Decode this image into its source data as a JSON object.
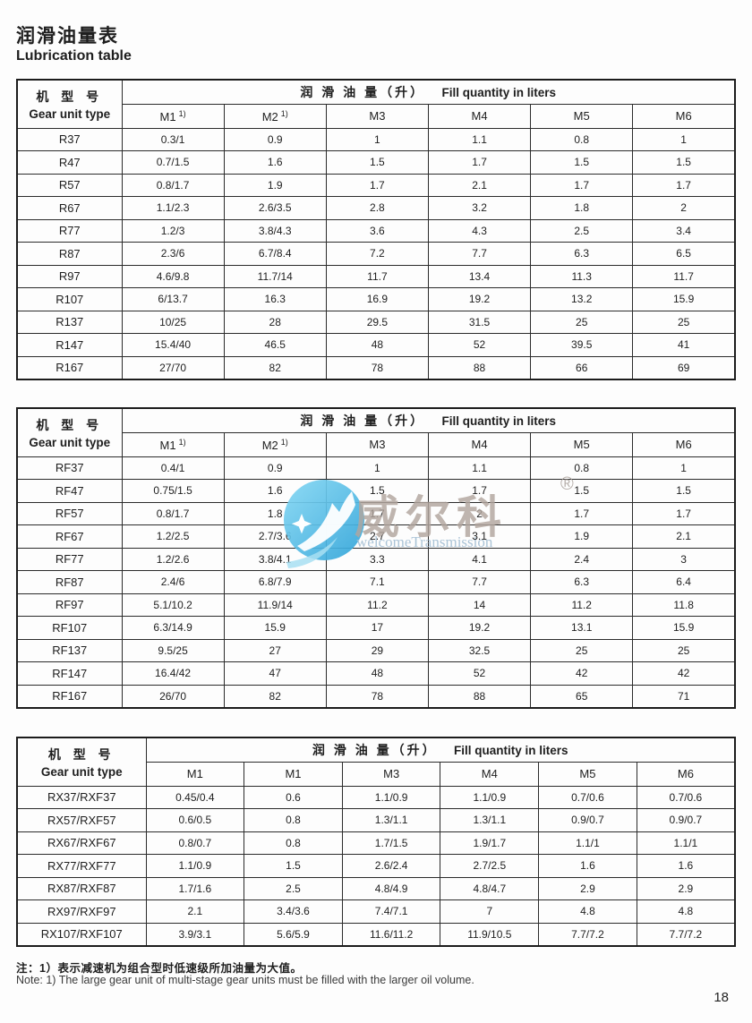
{
  "document": {
    "title_zh": "润滑油量表",
    "title_en": "Lubrication table",
    "note_zh": "注：1）表示减速机为组合型时低速级所加油量为大值。",
    "note_en": "Note: 1) The large gear unit of multi-stage gear units must be filled with the larger oil volume.",
    "page_number": "18"
  },
  "watermark": {
    "brand_zh": "威尔科",
    "registered_mark": "®",
    "brand_en": "welcomeTransmission",
    "circle_color": "#4db9e6",
    "circle_color_light": "#85d8f4",
    "brand_zh_color": "#b2a69e",
    "brand_en_color": "#a3bed3"
  },
  "tables": [
    {
      "series": "R",
      "model_zh": "机 型 号",
      "model_en": "Gear unit type",
      "fill_zh": "润 滑 油 量（升）",
      "fill_en": "Fill quantity in liters",
      "columns": [
        {
          "label": "M1",
          "sup": "1)"
        },
        {
          "label": "M2",
          "sup": "1)"
        },
        {
          "label": "M3",
          "sup": ""
        },
        {
          "label": "M4",
          "sup": ""
        },
        {
          "label": "M5",
          "sup": ""
        },
        {
          "label": "M6",
          "sup": ""
        }
      ],
      "rows": [
        {
          "model": "R37",
          "values": [
            "0.3/1",
            "0.9",
            "1",
            "1.1",
            "0.8",
            "1"
          ]
        },
        {
          "model": "R47",
          "values": [
            "0.7/1.5",
            "1.6",
            "1.5",
            "1.7",
            "1.5",
            "1.5"
          ]
        },
        {
          "model": "R57",
          "values": [
            "0.8/1.7",
            "1.9",
            "1.7",
            "2.1",
            "1.7",
            "1.7"
          ]
        },
        {
          "model": "R67",
          "values": [
            "1.1/2.3",
            "2.6/3.5",
            "2.8",
            "3.2",
            "1.8",
            "2"
          ]
        },
        {
          "model": "R77",
          "values": [
            "1.2/3",
            "3.8/4.3",
            "3.6",
            "4.3",
            "2.5",
            "3.4"
          ]
        },
        {
          "model": "R87",
          "values": [
            "2.3/6",
            "6.7/8.4",
            "7.2",
            "7.7",
            "6.3",
            "6.5"
          ]
        },
        {
          "model": "R97",
          "values": [
            "4.6/9.8",
            "11.7/14",
            "11.7",
            "13.4",
            "11.3",
            "11.7"
          ]
        },
        {
          "model": "R107",
          "values": [
            "6/13.7",
            "16.3",
            "16.9",
            "19.2",
            "13.2",
            "15.9"
          ]
        },
        {
          "model": "R137",
          "values": [
            "10/25",
            "28",
            "29.5",
            "31.5",
            "25",
            "25"
          ]
        },
        {
          "model": "R147",
          "values": [
            "15.4/40",
            "46.5",
            "48",
            "52",
            "39.5",
            "41"
          ]
        },
        {
          "model": "R167",
          "values": [
            "27/70",
            "82",
            "78",
            "88",
            "66",
            "69"
          ]
        }
      ]
    },
    {
      "series": "RF",
      "model_zh": "机 型 号",
      "model_en": "Gear unit type",
      "fill_zh": "润 滑 油 量（升）",
      "fill_en": "Fill quantity in liters",
      "columns": [
        {
          "label": "M1",
          "sup": "1)"
        },
        {
          "label": "M2",
          "sup": "1)"
        },
        {
          "label": "M3",
          "sup": ""
        },
        {
          "label": "M4",
          "sup": ""
        },
        {
          "label": "M5",
          "sup": ""
        },
        {
          "label": "M6",
          "sup": ""
        }
      ],
      "rows": [
        {
          "model": "RF37",
          "values": [
            "0.4/1",
            "0.9",
            "1",
            "1.1",
            "0.8",
            "1"
          ]
        },
        {
          "model": "RF47",
          "values": [
            "0.75/1.5",
            "1.6",
            "1.5",
            "1.7",
            "1.5",
            "1.5"
          ]
        },
        {
          "model": "RF57",
          "values": [
            "0.8/1.7",
            "1.8",
            "1.7",
            "2",
            "1.7",
            "1.7"
          ]
        },
        {
          "model": "RF67",
          "values": [
            "1.2/2.5",
            "2.7/3.6",
            "2.7",
            "3.1",
            "1.9",
            "2.1"
          ]
        },
        {
          "model": "RF77",
          "values": [
            "1.2/2.6",
            "3.8/4.1",
            "3.3",
            "4.1",
            "2.4",
            "3"
          ]
        },
        {
          "model": "RF87",
          "values": [
            "2.4/6",
            "6.8/7.9",
            "7.1",
            "7.7",
            "6.3",
            "6.4"
          ]
        },
        {
          "model": "RF97",
          "values": [
            "5.1/10.2",
            "11.9/14",
            "11.2",
            "14",
            "11.2",
            "11.8"
          ]
        },
        {
          "model": "RF107",
          "values": [
            "6.3/14.9",
            "15.9",
            "17",
            "19.2",
            "13.1",
            "15.9"
          ]
        },
        {
          "model": "RF137",
          "values": [
            "9.5/25",
            "27",
            "29",
            "32.5",
            "25",
            "25"
          ]
        },
        {
          "model": "RF147",
          "values": [
            "16.4/42",
            "47",
            "48",
            "52",
            "42",
            "42"
          ]
        },
        {
          "model": "RF167",
          "values": [
            "26/70",
            "82",
            "78",
            "88",
            "65",
            "71"
          ]
        }
      ]
    },
    {
      "series": "RX/RXF",
      "model_zh": "机 型 号",
      "model_en": "Gear unit type",
      "fill_zh": "润 滑 油 量（升）",
      "fill_en": "Fill quantity in liters",
      "columns": [
        {
          "label": "M1",
          "sup": ""
        },
        {
          "label": "M1",
          "sup": ""
        },
        {
          "label": "M3",
          "sup": ""
        },
        {
          "label": "M4",
          "sup": ""
        },
        {
          "label": "M5",
          "sup": ""
        },
        {
          "label": "M6",
          "sup": ""
        }
      ],
      "rows": [
        {
          "model": "RX37/RXF37",
          "values": [
            "0.45/0.4",
            "0.6",
            "1.1/0.9",
            "1.1/0.9",
            "0.7/0.6",
            "0.7/0.6"
          ]
        },
        {
          "model": "RX57/RXF57",
          "values": [
            "0.6/0.5",
            "0.8",
            "1.3/1.1",
            "1.3/1.1",
            "0.9/0.7",
            "0.9/0.7"
          ]
        },
        {
          "model": "RX67/RXF67",
          "values": [
            "0.8/0.7",
            "0.8",
            "1.7/1.5",
            "1.9/1.7",
            "1.1/1",
            "1.1/1"
          ]
        },
        {
          "model": "RX77/RXF77",
          "values": [
            "1.1/0.9",
            "1.5",
            "2.6/2.4",
            "2.7/2.5",
            "1.6",
            "1.6"
          ]
        },
        {
          "model": "RX87/RXF87",
          "values": [
            "1.7/1.6",
            "2.5",
            "4.8/4.9",
            "4.8/4.7",
            "2.9",
            "2.9"
          ]
        },
        {
          "model": "RX97/RXF97",
          "values": [
            "2.1",
            "3.4/3.6",
            "7.4/7.1",
            "7",
            "4.8",
            "4.8"
          ]
        },
        {
          "model": "RX107/RXF107",
          "values": [
            "3.9/3.1",
            "5.6/5.9",
            "11.6/11.2",
            "11.9/10.5",
            "7.7/7.2",
            "7.7/7.2"
          ]
        }
      ]
    }
  ]
}
